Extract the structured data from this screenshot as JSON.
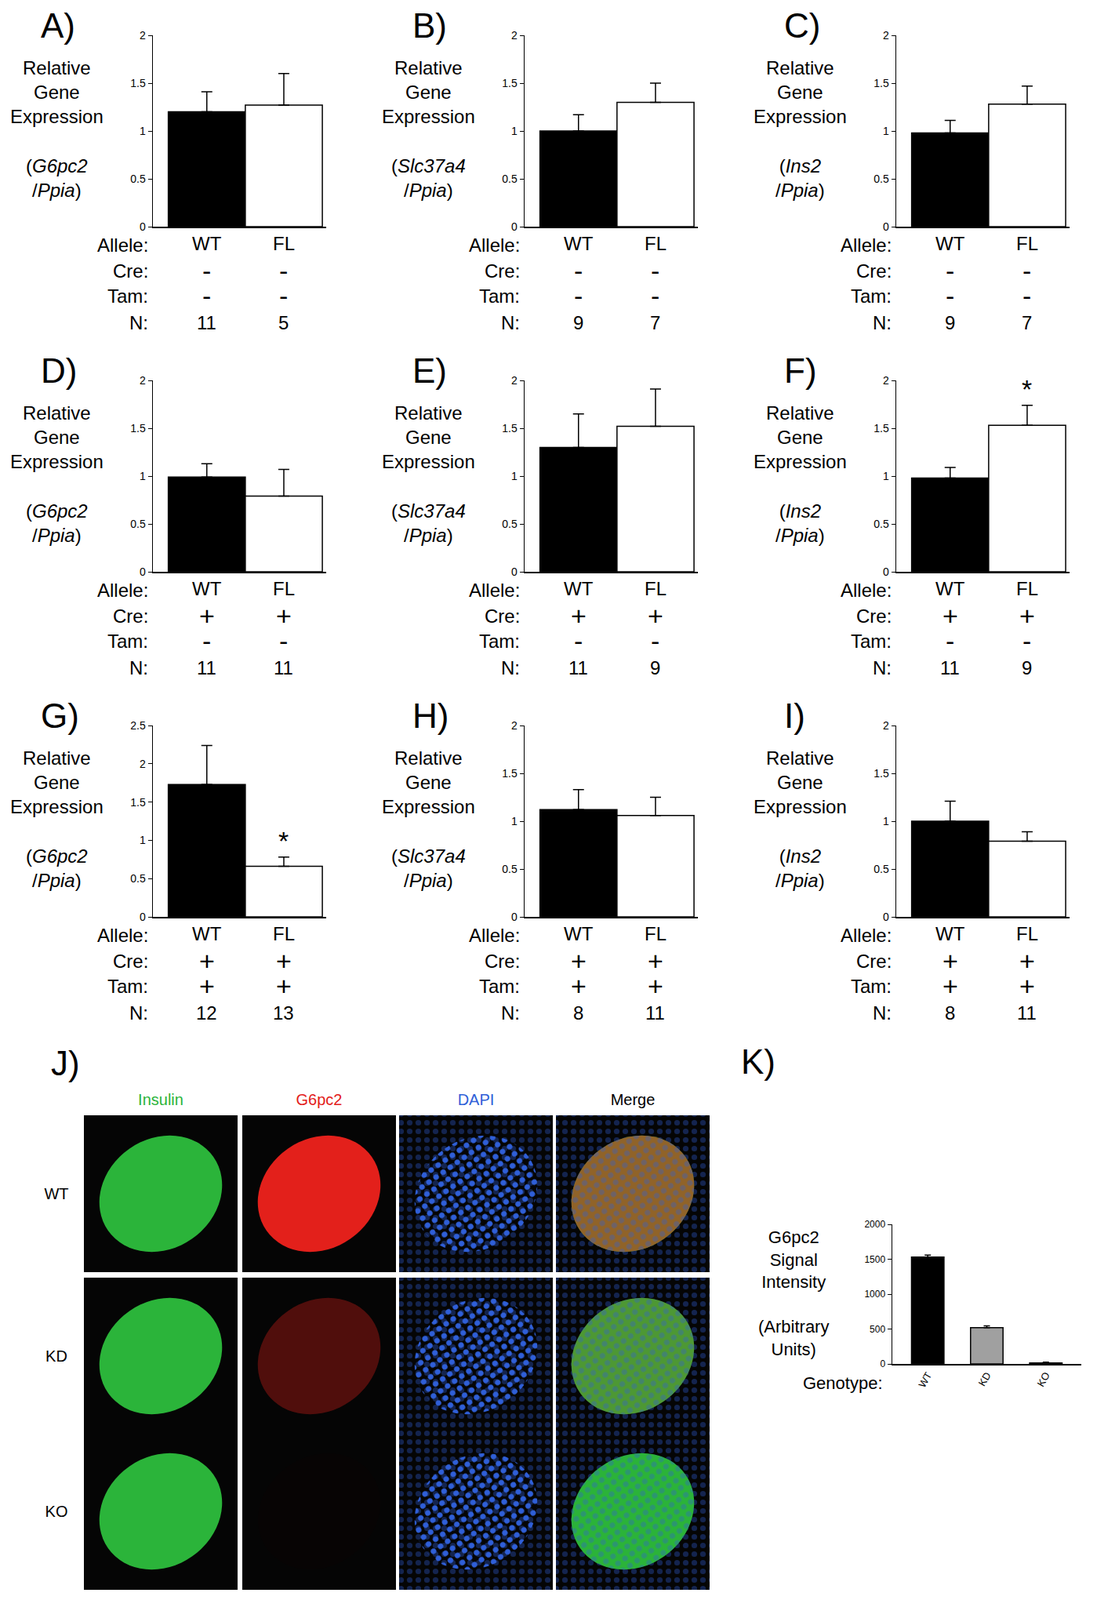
{
  "row_labels": [
    "Allele:",
    "Cre:",
    "Tam:",
    "N:"
  ],
  "chart_data": [
    {
      "panel": "A)",
      "type": "bar",
      "y_label": "Relative Gene Expression",
      "y_sublabel": "(G6pc2 /Ppia)",
      "categories": [
        "WT",
        "FL"
      ],
      "values": [
        1.2,
        1.27
      ],
      "errors": [
        0.21,
        0.33
      ],
      "colors": [
        "#000000",
        "#ffffff"
      ],
      "cre": [
        "-",
        "-"
      ],
      "tam": [
        "-",
        "-"
      ],
      "n": [
        11,
        5
      ],
      "ylim": [
        0,
        2
      ],
      "yticks": [
        0,
        0.5,
        1,
        1.5,
        2
      ],
      "annotations": []
    },
    {
      "panel": "B)",
      "type": "bar",
      "y_label": "Relative Gene Expression",
      "y_sublabel": "(Slc37a4 /Ppia)",
      "categories": [
        "WT",
        "FL"
      ],
      "values": [
        1.0,
        1.3
      ],
      "errors": [
        0.17,
        0.2
      ],
      "colors": [
        "#000000",
        "#ffffff"
      ],
      "cre": [
        "-",
        "-"
      ],
      "tam": [
        "-",
        "-"
      ],
      "n": [
        9,
        7
      ],
      "ylim": [
        0,
        2
      ],
      "yticks": [
        0,
        0.5,
        1,
        1.5,
        2
      ],
      "annotations": []
    },
    {
      "panel": "C)",
      "type": "bar",
      "y_label": "Relative Gene Expression",
      "y_sublabel": "(Ins2 /Ppia)",
      "categories": [
        "WT",
        "FL"
      ],
      "values": [
        0.98,
        1.28
      ],
      "errors": [
        0.13,
        0.19
      ],
      "colors": [
        "#000000",
        "#ffffff"
      ],
      "cre": [
        "-",
        "-"
      ],
      "tam": [
        "-",
        "-"
      ],
      "n": [
        9,
        7
      ],
      "ylim": [
        0,
        2
      ],
      "yticks": [
        0,
        0.5,
        1,
        1.5,
        2
      ],
      "annotations": []
    },
    {
      "panel": "D)",
      "type": "bar",
      "y_label": "Relative Gene Expression",
      "y_sublabel": "(G6pc2 /Ppia)",
      "categories": [
        "WT",
        "FL"
      ],
      "values": [
        0.99,
        0.79
      ],
      "errors": [
        0.14,
        0.28
      ],
      "colors": [
        "#000000",
        "#ffffff"
      ],
      "cre": [
        "+",
        "+"
      ],
      "tam": [
        "-",
        "-"
      ],
      "n": [
        11,
        11
      ],
      "ylim": [
        0,
        2
      ],
      "yticks": [
        0,
        0.5,
        1,
        1.5,
        2
      ],
      "annotations": []
    },
    {
      "panel": "E)",
      "type": "bar",
      "y_label": "Relative Gene Expression",
      "y_sublabel": "(Slc37a4 /Ppia)",
      "categories": [
        "WT",
        "FL"
      ],
      "values": [
        1.3,
        1.52
      ],
      "errors": [
        0.35,
        0.39
      ],
      "colors": [
        "#000000",
        "#ffffff"
      ],
      "cre": [
        "+",
        "+"
      ],
      "tam": [
        "-",
        "-"
      ],
      "n": [
        11,
        9
      ],
      "ylim": [
        0,
        2
      ],
      "yticks": [
        0,
        0.5,
        1,
        1.5,
        2
      ],
      "annotations": []
    },
    {
      "panel": "F)",
      "type": "bar",
      "y_label": "Relative Gene Expression",
      "y_sublabel": "(Ins2 /Ppia)",
      "categories": [
        "WT",
        "FL"
      ],
      "values": [
        0.98,
        1.53
      ],
      "errors": [
        0.11,
        0.21
      ],
      "colors": [
        "#000000",
        "#ffffff"
      ],
      "cre": [
        "+",
        "+"
      ],
      "tam": [
        "-",
        "-"
      ],
      "n": [
        11,
        9
      ],
      "ylim": [
        0,
        2
      ],
      "yticks": [
        0,
        0.5,
        1,
        1.5,
        2
      ],
      "annotations": [
        {
          "text": "*",
          "category": "FL"
        }
      ]
    },
    {
      "panel": "G)",
      "type": "bar",
      "y_label": "Relative Gene Expression",
      "y_sublabel": "(G6pc2 /Ppia)",
      "categories": [
        "WT",
        "FL"
      ],
      "values": [
        1.73,
        0.66
      ],
      "errors": [
        0.51,
        0.12
      ],
      "colors": [
        "#000000",
        "#ffffff"
      ],
      "cre": [
        "+",
        "+"
      ],
      "tam": [
        "+",
        "+"
      ],
      "n": [
        12,
        13
      ],
      "ylim": [
        0,
        2.5
      ],
      "yticks": [
        0,
        0.5,
        1,
        1.5,
        2,
        2.5
      ],
      "annotations": [
        {
          "text": "*",
          "category": "FL"
        }
      ]
    },
    {
      "panel": "H)",
      "type": "bar",
      "y_label": "Relative Gene Expression",
      "y_sublabel": "(Slc37a4 /Ppia)",
      "categories": [
        "WT",
        "FL"
      ],
      "values": [
        1.12,
        1.06
      ],
      "errors": [
        0.21,
        0.19
      ],
      "colors": [
        "#000000",
        "#ffffff"
      ],
      "cre": [
        "+",
        "+"
      ],
      "tam": [
        "+",
        "+"
      ],
      "n": [
        8,
        11
      ],
      "ylim": [
        0,
        2
      ],
      "yticks": [
        0,
        0.5,
        1,
        1.5,
        2
      ],
      "annotations": []
    },
    {
      "panel": "I)",
      "type": "bar",
      "y_label": "Relative Gene Expression",
      "y_sublabel": "(Ins2 /Ppia)",
      "categories": [
        "WT",
        "FL"
      ],
      "values": [
        1.0,
        0.79
      ],
      "errors": [
        0.21,
        0.1
      ],
      "colors": [
        "#000000",
        "#ffffff"
      ],
      "cre": [
        "+",
        "+"
      ],
      "tam": [
        "+",
        "+"
      ],
      "n": [
        8,
        11
      ],
      "ylim": [
        0,
        2
      ],
      "yticks": [
        0,
        0.5,
        1,
        1.5,
        2
      ],
      "annotations": []
    },
    {
      "panel": "K)",
      "type": "bar",
      "y_label": "G6pc2 Signal Intensity",
      "y_sublabel": "(Arbitrary Units)",
      "x_label": "Genotype:",
      "categories": [
        "WT",
        "KD",
        "KO"
      ],
      "values": [
        1530,
        520,
        15
      ],
      "errors": [
        30,
        25,
        10
      ],
      "colors": [
        "#000000",
        "#a0a0a0",
        "#000000"
      ],
      "ylim": [
        0,
        2000
      ],
      "yticks": [
        0,
        500,
        1000,
        1500,
        2000
      ]
    }
  ],
  "micrograph": {
    "panel": "J)",
    "channels": [
      {
        "name": "Insulin",
        "color": "#2bb43a"
      },
      {
        "name": "G6pc2",
        "color": "#e3201b"
      },
      {
        "name": "DAPI",
        "color": "#2f5fd8"
      },
      {
        "name": "Merge",
        "color": "#000000"
      }
    ],
    "rows": [
      "WT",
      "KD",
      "KO"
    ]
  }
}
